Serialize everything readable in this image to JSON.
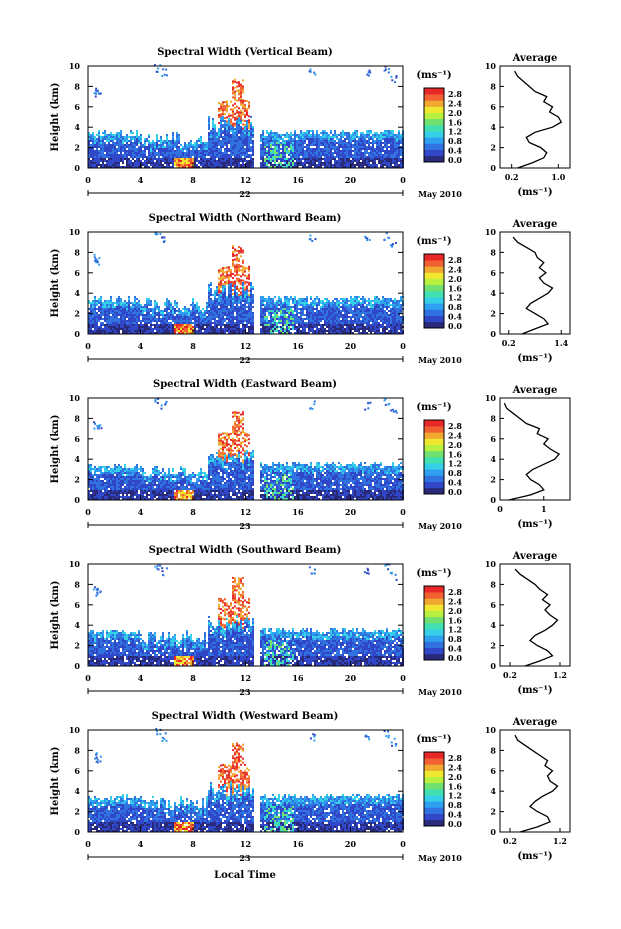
{
  "chart_data": {
    "type": "heatmap",
    "xlabel": "Local Time",
    "date_label": "May 2010",
    "unit_label": "(ms⁻¹)",
    "colorbar_ticks": [
      "2.8",
      "2.4",
      "2.0",
      "1.6",
      "1.2",
      "0.8",
      "0.4",
      "0.0"
    ],
    "height_ticks": [
      "0",
      "2",
      "4",
      "6",
      "8",
      "10"
    ],
    "time_ticks": [
      "0",
      "4",
      "8",
      "12",
      "16",
      "20",
      "0"
    ],
    "average_title": "Average",
    "average_xlabel": "(ms⁻¹)",
    "colormap": [
      "#2a2a7a",
      "#3048c8",
      "#2f72e0",
      "#2fa0f0",
      "#35d0e8",
      "#40e0b0",
      "#70e070",
      "#b8f040",
      "#f0e830",
      "#f0a830",
      "#f06030",
      "#e82828"
    ],
    "panels": [
      {
        "title": "Spectral Width (Vertical Beam)",
        "day": "22",
        "avg_xticks": [
          "0.2",
          "1.0"
        ],
        "avg_xlim": [
          0.0,
          1.2
        ],
        "avg_profile": [
          [
            0.3,
            0.0
          ],
          [
            0.55,
            0.5
          ],
          [
            0.75,
            1.0
          ],
          [
            0.8,
            1.5
          ],
          [
            0.7,
            2.0
          ],
          [
            0.5,
            2.5
          ],
          [
            0.45,
            3.0
          ],
          [
            0.6,
            3.5
          ],
          [
            0.9,
            4.0
          ],
          [
            1.05,
            4.5
          ],
          [
            1.0,
            5.0
          ],
          [
            0.85,
            5.5
          ],
          [
            0.9,
            6.0
          ],
          [
            0.75,
            6.5
          ],
          [
            0.8,
            7.0
          ],
          [
            0.6,
            7.5
          ],
          [
            0.5,
            8.0
          ],
          [
            0.4,
            8.5
          ],
          [
            0.3,
            9.0
          ],
          [
            0.25,
            9.5
          ]
        ]
      },
      {
        "title": "Spectral Width (Northward Beam)",
        "day": "22",
        "avg_xticks": [
          "0.2",
          "1.4"
        ],
        "avg_xlim": [
          0.0,
          1.6
        ],
        "avg_profile": [
          [
            0.5,
            0.0
          ],
          [
            0.8,
            0.5
          ],
          [
            1.1,
            1.0
          ],
          [
            1.0,
            1.5
          ],
          [
            0.8,
            2.0
          ],
          [
            0.6,
            2.5
          ],
          [
            0.7,
            3.0
          ],
          [
            0.9,
            3.5
          ],
          [
            1.1,
            4.0
          ],
          [
            1.2,
            4.5
          ],
          [
            1.0,
            5.0
          ],
          [
            0.9,
            5.5
          ],
          [
            1.05,
            6.0
          ],
          [
            0.9,
            6.5
          ],
          [
            1.0,
            7.0
          ],
          [
            0.85,
            7.5
          ],
          [
            0.8,
            8.0
          ],
          [
            0.6,
            8.5
          ],
          [
            0.4,
            9.0
          ],
          [
            0.3,
            9.5
          ]
        ]
      },
      {
        "title": "Spectral Width (Eastward Beam)",
        "day": "23",
        "avg_xticks": [
          "0",
          "1"
        ],
        "avg_xlim": [
          0.0,
          1.6
        ],
        "avg_profile": [
          [
            0.2,
            0.0
          ],
          [
            0.7,
            0.5
          ],
          [
            1.0,
            1.0
          ],
          [
            0.9,
            1.5
          ],
          [
            0.7,
            2.0
          ],
          [
            0.6,
            2.5
          ],
          [
            0.75,
            3.0
          ],
          [
            1.0,
            3.5
          ],
          [
            1.25,
            4.0
          ],
          [
            1.35,
            4.5
          ],
          [
            1.15,
            5.0
          ],
          [
            1.0,
            5.5
          ],
          [
            1.1,
            6.0
          ],
          [
            0.85,
            6.5
          ],
          [
            0.9,
            7.0
          ],
          [
            0.6,
            7.5
          ],
          [
            0.45,
            8.0
          ],
          [
            0.3,
            8.5
          ],
          [
            0.15,
            9.0
          ],
          [
            0.1,
            9.5
          ]
        ]
      },
      {
        "title": "Spectral Width (Southward Beam)",
        "day": "23",
        "avg_xticks": [
          "0.2",
          "1.2"
        ],
        "avg_xlim": [
          0.0,
          1.4
        ],
        "avg_profile": [
          [
            0.5,
            0.0
          ],
          [
            0.8,
            0.5
          ],
          [
            1.05,
            1.0
          ],
          [
            0.95,
            1.5
          ],
          [
            0.75,
            2.0
          ],
          [
            0.6,
            2.5
          ],
          [
            0.7,
            3.0
          ],
          [
            0.9,
            3.5
          ],
          [
            1.05,
            4.0
          ],
          [
            1.15,
            4.5
          ],
          [
            1.0,
            5.0
          ],
          [
            0.9,
            5.5
          ],
          [
            1.0,
            6.0
          ],
          [
            0.85,
            6.5
          ],
          [
            0.95,
            7.0
          ],
          [
            0.8,
            7.5
          ],
          [
            0.7,
            8.0
          ],
          [
            0.55,
            8.5
          ],
          [
            0.4,
            9.0
          ],
          [
            0.3,
            9.5
          ]
        ]
      },
      {
        "title": "Spectral Width (Westward Beam)",
        "day": "23",
        "avg_xticks": [
          "0.2",
          "1.2"
        ],
        "avg_xlim": [
          0.0,
          1.4
        ],
        "avg_profile": [
          [
            0.4,
            0.0
          ],
          [
            0.75,
            0.5
          ],
          [
            1.0,
            1.0
          ],
          [
            0.95,
            1.5
          ],
          [
            0.75,
            2.0
          ],
          [
            0.6,
            2.5
          ],
          [
            0.7,
            3.0
          ],
          [
            0.85,
            3.5
          ],
          [
            1.05,
            4.0
          ],
          [
            1.15,
            4.5
          ],
          [
            1.0,
            5.0
          ],
          [
            0.95,
            5.5
          ],
          [
            1.05,
            6.0
          ],
          [
            0.9,
            6.5
          ],
          [
            0.95,
            7.0
          ],
          [
            0.8,
            7.5
          ],
          [
            0.65,
            8.0
          ],
          [
            0.5,
            8.5
          ],
          [
            0.35,
            9.0
          ],
          [
            0.3,
            9.5
          ]
        ]
      }
    ]
  }
}
